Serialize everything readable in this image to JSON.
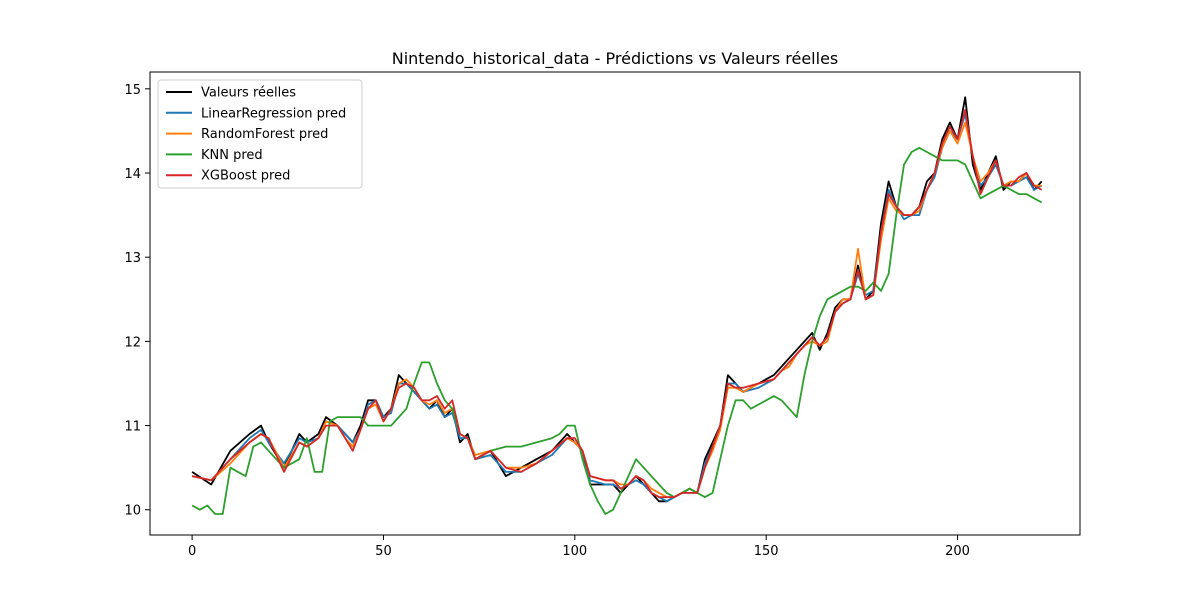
{
  "chart_data": {
    "type": "line",
    "title": "Nintendo_historical_data - Prédictions vs Valeurs réelles",
    "xlabel": "",
    "ylabel": "",
    "xlim": [
      -11,
      232
    ],
    "ylim": [
      9.7,
      15.2
    ],
    "xticks": [
      0,
      50,
      100,
      150,
      200
    ],
    "yticks": [
      10,
      11,
      12,
      13,
      14,
      15
    ],
    "legend_position": "top-left",
    "grid": false,
    "series": [
      {
        "name": "Valeurs réelles",
        "color": "#000000",
        "x": [
          0,
          5,
          10,
          15,
          18,
          20,
          24,
          28,
          30,
          33,
          35,
          38,
          40,
          42,
          44,
          46,
          48,
          50,
          52,
          54,
          56,
          58,
          60,
          62,
          64,
          66,
          68,
          70,
          72,
          74,
          78,
          82,
          86,
          90,
          94,
          98,
          100,
          102,
          104,
          108,
          110,
          112,
          114,
          116,
          118,
          120,
          122,
          124,
          126,
          128,
          130,
          132,
          134,
          136,
          138,
          140,
          142,
          144,
          148,
          152,
          154,
          156,
          158,
          160,
          162,
          164,
          166,
          168,
          170,
          172,
          174,
          176,
          178,
          180,
          182,
          184,
          186,
          188,
          190,
          192,
          194,
          196,
          198,
          200,
          202,
          204,
          206,
          208,
          210,
          212,
          214,
          216,
          218,
          220,
          222
        ],
        "y": [
          10.45,
          10.3,
          10.7,
          10.9,
          11.0,
          10.8,
          10.5,
          10.9,
          10.8,
          10.9,
          11.1,
          11.0,
          10.9,
          10.8,
          11.0,
          11.3,
          11.3,
          11.1,
          11.2,
          11.6,
          11.5,
          11.4,
          11.3,
          11.2,
          11.3,
          11.1,
          11.2,
          10.8,
          10.9,
          10.6,
          10.7,
          10.4,
          10.5,
          10.6,
          10.7,
          10.9,
          10.8,
          10.7,
          10.3,
          10.3,
          10.3,
          10.2,
          10.3,
          10.4,
          10.3,
          10.2,
          10.1,
          10.1,
          10.15,
          10.2,
          10.25,
          10.2,
          10.6,
          10.8,
          11.0,
          11.6,
          11.5,
          11.4,
          11.5,
          11.6,
          11.7,
          11.8,
          11.9,
          12.0,
          12.1,
          11.9,
          12.1,
          12.4,
          12.5,
          12.5,
          12.9,
          12.5,
          12.6,
          13.4,
          13.9,
          13.6,
          13.5,
          13.5,
          13.6,
          13.9,
          14.0,
          14.4,
          14.6,
          14.4,
          14.9,
          14.1,
          13.8,
          14.0,
          14.2,
          13.8,
          13.9,
          13.9,
          14.0,
          13.8,
          13.9
        ]
      },
      {
        "name": "LinearRegression pred",
        "color": "#1f77b4",
        "x": [
          0,
          5,
          10,
          15,
          18,
          20,
          24,
          28,
          30,
          33,
          35,
          38,
          40,
          42,
          44,
          46,
          48,
          50,
          52,
          54,
          56,
          58,
          60,
          62,
          64,
          66,
          68,
          70,
          72,
          74,
          78,
          82,
          86,
          90,
          94,
          98,
          100,
          102,
          104,
          108,
          110,
          112,
          114,
          116,
          118,
          120,
          122,
          124,
          126,
          128,
          130,
          132,
          134,
          136,
          138,
          140,
          142,
          144,
          148,
          152,
          154,
          156,
          158,
          160,
          162,
          164,
          166,
          168,
          170,
          172,
          174,
          176,
          178,
          180,
          182,
          184,
          186,
          188,
          190,
          192,
          194,
          196,
          198,
          200,
          202,
          204,
          206,
          208,
          210,
          212,
          214,
          216,
          218,
          220,
          222
        ],
        "y": [
          10.4,
          10.35,
          10.6,
          10.85,
          10.95,
          10.8,
          10.55,
          10.85,
          10.8,
          10.85,
          11.05,
          11.0,
          10.9,
          10.8,
          10.95,
          11.25,
          11.3,
          11.1,
          11.15,
          11.5,
          11.5,
          11.4,
          11.3,
          11.2,
          11.25,
          11.1,
          11.15,
          10.85,
          10.85,
          10.6,
          10.65,
          10.45,
          10.45,
          10.55,
          10.65,
          10.85,
          10.8,
          10.7,
          10.35,
          10.3,
          10.3,
          10.25,
          10.3,
          10.35,
          10.3,
          10.2,
          10.15,
          10.1,
          10.15,
          10.2,
          10.2,
          10.2,
          10.55,
          10.75,
          11.0,
          11.5,
          11.5,
          11.4,
          11.45,
          11.55,
          11.65,
          11.75,
          11.85,
          11.95,
          12.05,
          11.95,
          12.05,
          12.35,
          12.45,
          12.5,
          12.8,
          12.55,
          12.6,
          13.3,
          13.8,
          13.6,
          13.45,
          13.5,
          13.5,
          13.8,
          13.95,
          14.3,
          14.5,
          14.4,
          14.7,
          14.2,
          13.85,
          13.95,
          14.1,
          13.85,
          13.85,
          13.9,
          13.95,
          13.8,
          13.85
        ]
      },
      {
        "name": "RandomForest pred",
        "color": "#ff7f0e",
        "x": [
          0,
          5,
          10,
          15,
          18,
          20,
          24,
          28,
          30,
          33,
          35,
          38,
          40,
          42,
          44,
          46,
          48,
          50,
          52,
          54,
          56,
          58,
          60,
          62,
          64,
          66,
          68,
          70,
          72,
          74,
          78,
          82,
          86,
          90,
          94,
          98,
          100,
          102,
          104,
          108,
          110,
          112,
          114,
          116,
          118,
          120,
          122,
          124,
          126,
          128,
          130,
          132,
          134,
          136,
          138,
          140,
          142,
          144,
          148,
          152,
          154,
          156,
          158,
          160,
          162,
          164,
          166,
          168,
          170,
          172,
          174,
          176,
          178,
          180,
          182,
          184,
          186,
          188,
          190,
          192,
          194,
          196,
          198,
          200,
          202,
          204,
          206,
          208,
          210,
          212,
          214,
          216,
          218,
          220,
          222
        ],
        "y": [
          10.4,
          10.35,
          10.55,
          10.8,
          10.9,
          10.85,
          10.5,
          10.8,
          10.75,
          10.85,
          11.05,
          11.0,
          10.85,
          10.75,
          10.95,
          11.2,
          11.25,
          11.05,
          11.2,
          11.5,
          11.55,
          11.45,
          11.3,
          11.25,
          11.3,
          11.15,
          11.2,
          10.9,
          10.85,
          10.65,
          10.7,
          10.5,
          10.5,
          10.55,
          10.7,
          10.85,
          10.8,
          10.7,
          10.4,
          10.35,
          10.35,
          10.3,
          10.3,
          10.4,
          10.35,
          10.25,
          10.2,
          10.15,
          10.15,
          10.2,
          10.25,
          10.2,
          10.5,
          10.7,
          10.95,
          11.45,
          11.45,
          11.4,
          11.5,
          11.55,
          11.65,
          11.7,
          11.85,
          11.95,
          12.0,
          11.95,
          12.0,
          12.35,
          12.5,
          12.5,
          13.1,
          12.5,
          12.55,
          13.2,
          13.7,
          13.55,
          13.5,
          13.5,
          13.55,
          13.8,
          14.0,
          14.3,
          14.5,
          14.35,
          14.6,
          14.2,
          13.9,
          14.0,
          14.15,
          13.85,
          13.9,
          13.9,
          14.0,
          13.85,
          13.85
        ]
      },
      {
        "name": "KNN pred",
        "color": "#2ca02c",
        "x": [
          0,
          2,
          4,
          6,
          8,
          10,
          12,
          14,
          16,
          18,
          20,
          24,
          28,
          30,
          32,
          34,
          36,
          38,
          40,
          42,
          44,
          46,
          48,
          50,
          52,
          54,
          56,
          58,
          60,
          62,
          64,
          66,
          68,
          70,
          72,
          74,
          78,
          82,
          86,
          90,
          94,
          96,
          98,
          100,
          102,
          104,
          106,
          108,
          110,
          112,
          114,
          116,
          118,
          120,
          122,
          124,
          126,
          128,
          130,
          132,
          134,
          136,
          138,
          140,
          142,
          144,
          146,
          148,
          150,
          152,
          154,
          156,
          158,
          160,
          162,
          164,
          166,
          168,
          170,
          172,
          174,
          176,
          178,
          180,
          182,
          184,
          186,
          188,
          190,
          192,
          194,
          196,
          198,
          200,
          202,
          204,
          206,
          208,
          210,
          212,
          214,
          216,
          218,
          220,
          222
        ],
        "y": [
          10.05,
          10.0,
          10.05,
          9.95,
          9.95,
          10.5,
          10.45,
          10.4,
          10.75,
          10.8,
          10.7,
          10.5,
          10.6,
          10.85,
          10.45,
          10.45,
          11.05,
          11.1,
          11.1,
          11.1,
          11.1,
          11.0,
          11.0,
          11.0,
          11.0,
          11.1,
          11.2,
          11.5,
          11.75,
          11.75,
          11.5,
          11.3,
          11.2,
          10.9,
          10.85,
          10.6,
          10.7,
          10.75,
          10.75,
          10.8,
          10.85,
          10.9,
          11.0,
          11.0,
          10.6,
          10.3,
          10.1,
          9.95,
          10.0,
          10.2,
          10.4,
          10.6,
          10.5,
          10.4,
          10.3,
          10.2,
          10.15,
          10.2,
          10.25,
          10.2,
          10.15,
          10.2,
          10.6,
          11.0,
          11.3,
          11.3,
          11.2,
          11.25,
          11.3,
          11.35,
          11.3,
          11.2,
          11.1,
          11.6,
          12.0,
          12.3,
          12.5,
          12.55,
          12.6,
          12.65,
          12.65,
          12.6,
          12.7,
          12.6,
          12.8,
          13.5,
          14.1,
          14.25,
          14.3,
          14.25,
          14.2,
          14.15,
          14.15,
          14.15,
          14.1,
          13.9,
          13.7,
          13.75,
          13.8,
          13.85,
          13.8,
          13.75,
          13.75,
          13.7,
          13.65
        ]
      },
      {
        "name": "XGBoost pred",
        "color": "#d62728",
        "x": [
          0,
          5,
          10,
          15,
          18,
          20,
          24,
          28,
          30,
          33,
          35,
          38,
          40,
          42,
          44,
          46,
          48,
          50,
          52,
          54,
          56,
          58,
          60,
          62,
          64,
          66,
          68,
          70,
          72,
          74,
          78,
          82,
          86,
          90,
          94,
          98,
          100,
          102,
          104,
          108,
          110,
          112,
          114,
          116,
          118,
          120,
          122,
          124,
          126,
          128,
          130,
          132,
          134,
          136,
          138,
          140,
          142,
          144,
          148,
          152,
          154,
          156,
          158,
          160,
          162,
          164,
          166,
          168,
          170,
          172,
          174,
          176,
          178,
          180,
          182,
          184,
          186,
          188,
          190,
          192,
          194,
          196,
          198,
          200,
          202,
          204,
          206,
          208,
          210,
          212,
          214,
          216,
          218,
          220,
          222
        ],
        "y": [
          10.4,
          10.35,
          10.6,
          10.8,
          10.9,
          10.85,
          10.45,
          10.8,
          10.75,
          10.85,
          11.0,
          11.0,
          10.85,
          10.7,
          10.95,
          11.2,
          11.3,
          11.05,
          11.2,
          11.45,
          11.5,
          11.45,
          11.3,
          11.3,
          11.35,
          11.2,
          11.3,
          10.9,
          10.85,
          10.6,
          10.7,
          10.5,
          10.45,
          10.55,
          10.7,
          10.85,
          10.85,
          10.7,
          10.4,
          10.35,
          10.35,
          10.25,
          10.3,
          10.4,
          10.35,
          10.2,
          10.15,
          10.15,
          10.15,
          10.2,
          10.2,
          10.2,
          10.5,
          10.75,
          11.0,
          11.5,
          11.45,
          11.45,
          11.5,
          11.55,
          11.65,
          11.75,
          11.85,
          11.95,
          12.05,
          11.95,
          12.05,
          12.35,
          12.45,
          12.5,
          12.85,
          12.5,
          12.55,
          13.3,
          13.75,
          13.6,
          13.5,
          13.5,
          13.6,
          13.8,
          14.0,
          14.35,
          14.55,
          14.4,
          14.75,
          14.2,
          13.75,
          13.95,
          14.15,
          13.85,
          13.85,
          13.95,
          14.0,
          13.85,
          13.8
        ]
      }
    ]
  }
}
